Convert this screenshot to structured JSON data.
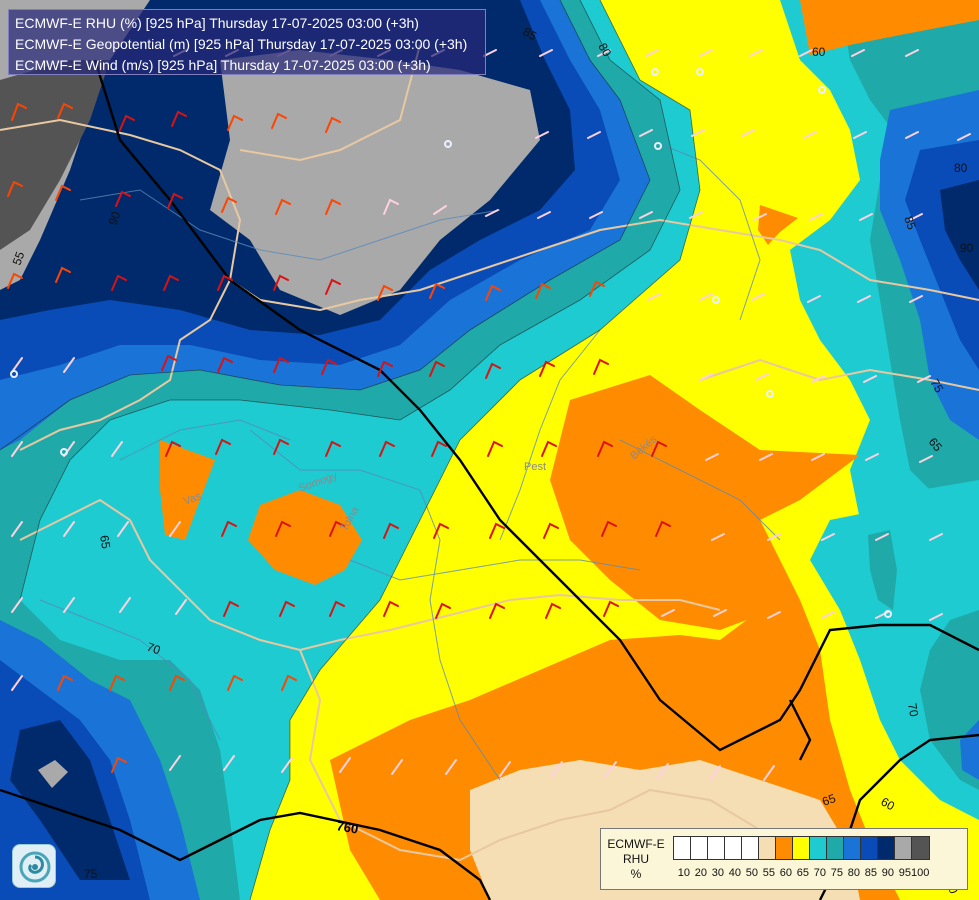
{
  "header": {
    "lines": [
      "ECMWF-E RHU (%) [925 hPa] Thursday 17-07-2025 03:00 (+3h)",
      "ECMWF-E Geopotential (m) [925 hPa] Thursday 17-07-2025 03:00 (+3h)",
      "ECMWF-E Wind (m/s) [925 hPa] Thursday 17-07-2025 03:00 (+3h)"
    ]
  },
  "legend": {
    "model": "ECMWF-E",
    "variable": "RHU",
    "unit": "%",
    "levels": [
      "10",
      "20",
      "30",
      "40",
      "50",
      "55",
      "60",
      "65",
      "70",
      "75",
      "80",
      "85",
      "90",
      "95",
      "100"
    ],
    "colors": [
      "#ffffff",
      "#ffffff",
      "#ffffff",
      "#ffffff",
      "#ffffff",
      "#f5deb3",
      "#ff8c00",
      "#ffff00",
      "#1dcbd1",
      "#20a9a9",
      "#1a74d8",
      "#0a4cb7",
      "#002a6b",
      "#a9a9a9",
      "#545454"
    ]
  },
  "map": {
    "contour_labels": [
      "85",
      "80",
      "60",
      "55",
      "90",
      "80",
      "85",
      "90",
      "75",
      "65",
      "65",
      "70",
      "70",
      "60",
      "65",
      "75",
      "70"
    ],
    "geopotential_label": "760",
    "place_labels": [
      "Vas",
      "Somogy",
      "Tolna",
      "Pest",
      "Békés"
    ],
    "colors": {
      "rhu_50_55": "#f5deb3",
      "rhu_55_60": "#ff8c00",
      "rhu_60_65": "#ffff00",
      "rhu_65_70": "#1dcbd1",
      "rhu_70_75": "#20a9a9",
      "rhu_75_80": "#1a74d8",
      "rhu_80_85": "#0a4cb7",
      "rhu_85_90": "#002a6b",
      "rhu_90_95": "#a9a9a9",
      "rhu_95_100": "#545454",
      "borders": "#e8c8a0",
      "rivers": "#5a8ab8",
      "geopotential_line": "#000000"
    }
  },
  "logo": {
    "icon": "ecmwf-swirl-icon"
  }
}
